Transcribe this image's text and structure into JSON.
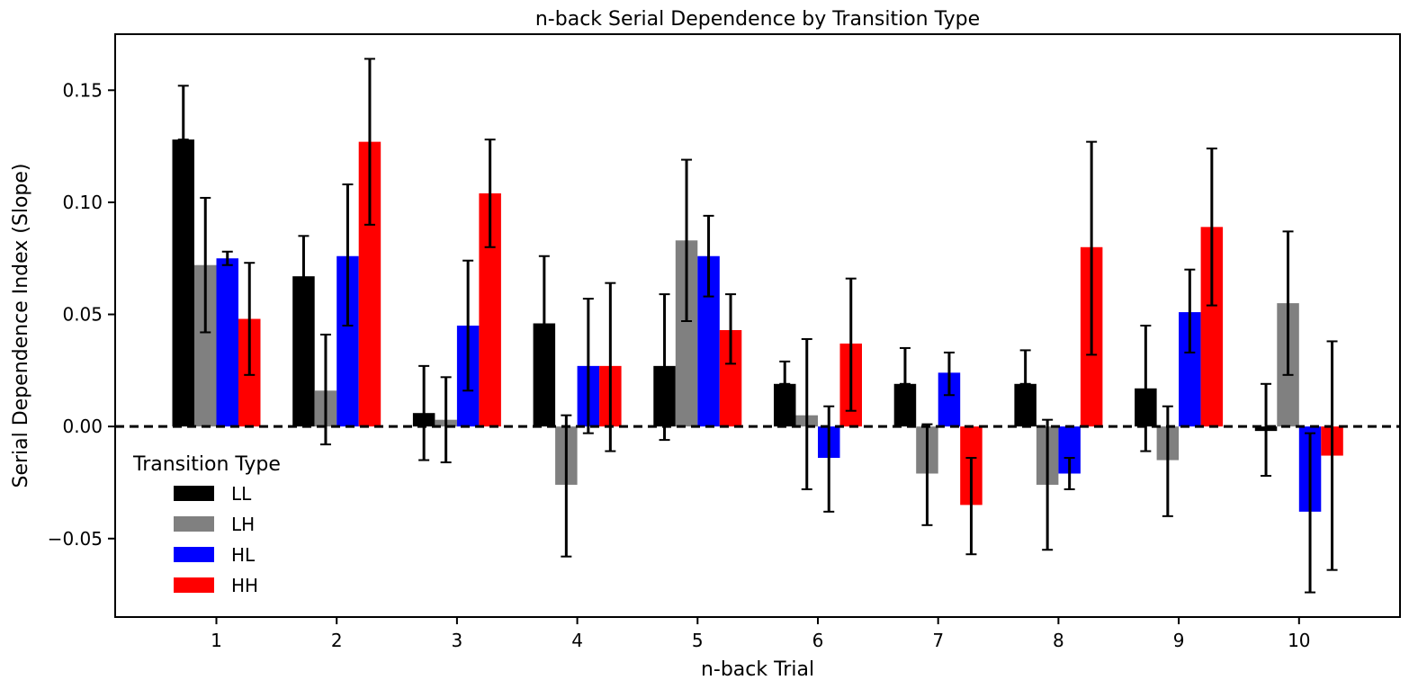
{
  "chart_data": {
    "type": "bar",
    "title": "n-back Serial Dependence by Transition Type",
    "xlabel": "n-back Trial",
    "ylabel": "Serial Dependence Index (Slope)",
    "categories": [
      "1",
      "2",
      "3",
      "4",
      "5",
      "6",
      "7",
      "8",
      "9",
      "10"
    ],
    "ylim": [
      -0.085,
      0.175
    ],
    "yticks": [
      -0.05,
      0.0,
      0.05,
      0.1,
      0.15
    ],
    "ytick_labels": [
      "−0.05",
      "0.00",
      "0.05",
      "0.10",
      "0.15"
    ],
    "reference_line": {
      "y": 0,
      "style": "dashed",
      "color": "#000000"
    },
    "series": [
      {
        "name": "LL",
        "color": "#000000",
        "values": [
          0.128,
          0.067,
          0.006,
          0.046,
          0.027,
          0.019,
          0.019,
          0.019,
          0.017,
          -0.002
        ],
        "err_low": [
          0.128,
          0.049,
          -0.015,
          0.016,
          -0.006,
          0.019,
          0.019,
          0.019,
          -0.011,
          -0.022
        ],
        "err_high": [
          0.152,
          0.085,
          0.027,
          0.076,
          0.059,
          0.029,
          0.035,
          0.034,
          0.045,
          0.019
        ]
      },
      {
        "name": "LH",
        "color": "#808080",
        "values": [
          0.072,
          0.016,
          0.003,
          -0.026,
          0.083,
          0.005,
          -0.021,
          -0.026,
          -0.015,
          0.055
        ],
        "err_low": [
          0.042,
          -0.008,
          -0.016,
          -0.058,
          0.047,
          -0.028,
          -0.044,
          -0.055,
          -0.04,
          0.023
        ],
        "err_high": [
          0.102,
          0.041,
          0.022,
          0.005,
          0.119,
          0.039,
          0.001,
          0.003,
          0.009,
          0.087
        ]
      },
      {
        "name": "HL",
        "color": "#0000ff",
        "values": [
          0.075,
          0.076,
          0.045,
          0.027,
          0.076,
          -0.014,
          0.024,
          -0.021,
          0.051,
          -0.038
        ],
        "err_low": [
          0.072,
          0.045,
          0.016,
          -0.003,
          0.058,
          -0.038,
          0.014,
          -0.028,
          0.033,
          -0.074
        ],
        "err_high": [
          0.078,
          0.108,
          0.074,
          0.057,
          0.094,
          0.009,
          0.033,
          -0.014,
          0.07,
          -0.003
        ]
      },
      {
        "name": "HH",
        "color": "#ff0000",
        "values": [
          0.048,
          0.127,
          0.104,
          0.027,
          0.043,
          0.037,
          -0.035,
          0.08,
          0.089,
          -0.013
        ],
        "err_low": [
          0.023,
          0.09,
          0.08,
          -0.011,
          0.028,
          0.007,
          -0.057,
          0.032,
          0.054,
          -0.064
        ],
        "err_high": [
          0.073,
          0.164,
          0.128,
          0.064,
          0.059,
          0.066,
          -0.014,
          0.127,
          0.124,
          0.038
        ]
      }
    ],
    "legend": {
      "title": "Transition Type",
      "placement": "lower-left"
    },
    "grid": false
  }
}
